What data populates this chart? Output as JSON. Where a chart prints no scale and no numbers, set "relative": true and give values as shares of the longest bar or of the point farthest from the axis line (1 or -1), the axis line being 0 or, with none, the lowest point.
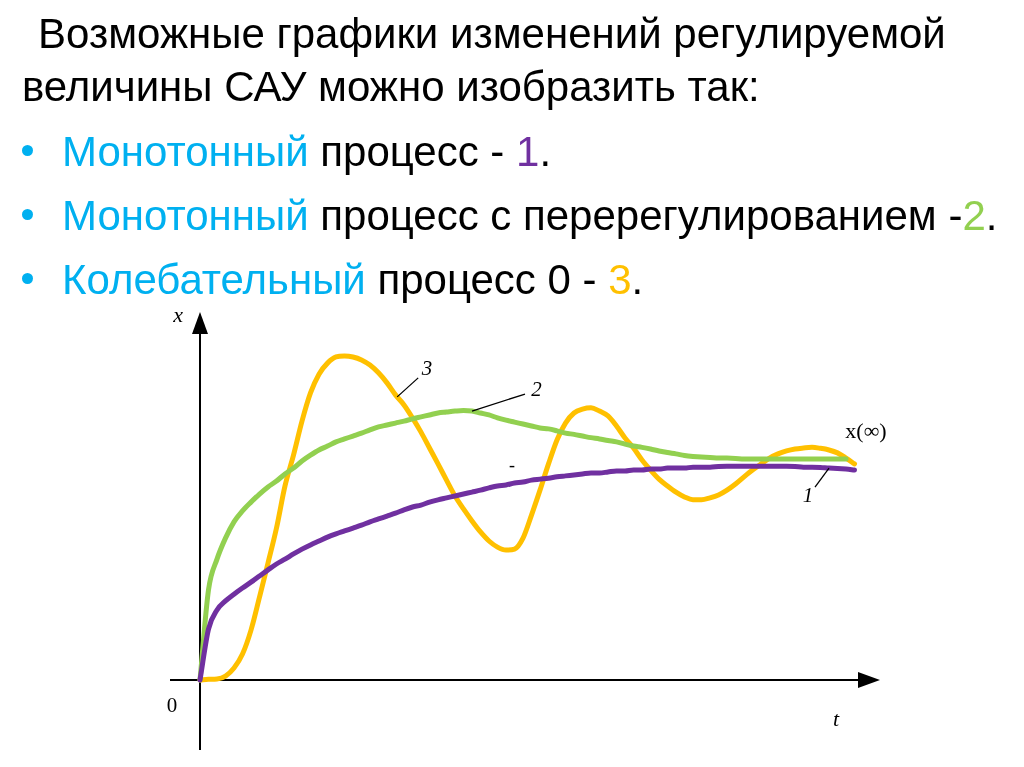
{
  "chart_data": {
    "type": "line",
    "title": "Возможные графики изменений регулируемой величины САУ можно изобразить так:",
    "subtitle": "Монотонный процесс - 1.\nМонотонный процесс с перерегулированием -2.\nКолебательный процесс 0 - 3.",
    "xlabel": "t",
    "ylabel": "x",
    "relative": true,
    "tick_labels": false,
    "marker": "none",
    "line_style": "solid",
    "categories": [
      null,
      null,
      null,
      null,
      null,
      null,
      null,
      null,
      null,
      null,
      null,
      null,
      null,
      null,
      null,
      null,
      null,
      null,
      null,
      null,
      null,
      null,
      null,
      null,
      null,
      null,
      null,
      null,
      null,
      null,
      null,
      null,
      null,
      null,
      null,
      null,
      null,
      null,
      null,
      null,
      null,
      null,
      null,
      null,
      null,
      null,
      null,
      null,
      null,
      null,
      null,
      null,
      null,
      null,
      null,
      null,
      null,
      null,
      null,
      null,
      null,
      null,
      null,
      null,
      null,
      null,
      null,
      null,
      null,
      null,
      null,
      null,
      null,
      null,
      null,
      null,
      null,
      null,
      null,
      null,
      null
    ],
    "series": [
      {
        "name": "1",
        "color": "#7030a0",
        "values": [
          0,
          0.157,
          0.216,
          0.244,
          0.265,
          0.284,
          0.302,
          0.321,
          0.34,
          0.358,
          0.373,
          0.389,
          0.404,
          0.417,
          0.429,
          0.441,
          0.451,
          0.46,
          0.469,
          0.478,
          0.488,
          0.497,
          0.506,
          0.515,
          0.525,
          0.534,
          0.54,
          0.549,
          0.556,
          0.562,
          0.568,
          0.574,
          0.58,
          0.586,
          0.593,
          0.599,
          0.602,
          0.608,
          0.611,
          0.617,
          0.62,
          0.623,
          0.627,
          0.63,
          0.633,
          0.636,
          0.639,
          0.639,
          0.642,
          0.645,
          0.645,
          0.648,
          0.648,
          0.651,
          0.651,
          0.654,
          0.654,
          0.654,
          0.657,
          0.657,
          0.657,
          0.659,
          0.66,
          0.66,
          0.66,
          0.66,
          0.66,
          0.66,
          0.66,
          0.66,
          0.659,
          0.657,
          0.657,
          0.656,
          0.654,
          0.653,
          0.651,
          0.648,
          null,
          null,
          null
        ]
      },
      {
        "name": "2",
        "color": "#92d050",
        "values": [
          0,
          0.278,
          0.373,
          0.438,
          0.488,
          0.522,
          0.549,
          0.574,
          0.596,
          0.614,
          0.636,
          0.654,
          0.676,
          0.694,
          0.71,
          0.722,
          0.735,
          0.744,
          0.753,
          0.762,
          0.772,
          0.781,
          0.787,
          0.793,
          0.799,
          0.806,
          0.812,
          0.818,
          0.824,
          0.827,
          0.83,
          0.832,
          0.83,
          0.824,
          0.818,
          0.809,
          0.802,
          0.796,
          0.79,
          0.784,
          0.778,
          0.775,
          0.769,
          0.762,
          0.758,
          0.753,
          0.748,
          0.744,
          0.739,
          0.735,
          0.728,
          0.722,
          0.718,
          0.713,
          0.707,
          0.702,
          0.698,
          0.693,
          0.69,
          0.688,
          0.687,
          0.685,
          0.685,
          0.684,
          0.682,
          0.682,
          0.682,
          0.682,
          0.682,
          0.682,
          0.682,
          0.682,
          0.682,
          0.682,
          0.682,
          0.682,
          0.682,
          null,
          null,
          null,
          null
        ]
      },
      {
        "name": "3",
        "color": "#ffc000",
        "values": [
          0,
          0.002,
          0.003,
          0.012,
          0.037,
          0.08,
          0.154,
          0.256,
          0.361,
          0.469,
          0.599,
          0.694,
          0.799,
          0.886,
          0.944,
          0.978,
          0.997,
          1,
          0.997,
          0.988,
          0.972,
          0.948,
          0.917,
          0.88,
          0.849,
          0.809,
          0.765,
          0.716,
          0.667,
          0.617,
          0.568,
          0.528,
          0.491,
          0.457,
          0.429,
          0.41,
          0.401,
          0.404,
          0.438,
          0.509,
          0.586,
          0.667,
          0.741,
          0.793,
          0.824,
          0.836,
          0.84,
          0.83,
          0.815,
          0.784,
          0.747,
          0.716,
          0.679,
          0.648,
          0.62,
          0.599,
          0.58,
          0.565,
          0.556,
          0.556,
          0.562,
          0.571,
          0.586,
          0.605,
          0.627,
          0.648,
          0.667,
          0.685,
          0.698,
          0.707,
          0.713,
          0.716,
          0.718,
          0.715,
          0.71,
          0.701,
          0.685,
          0.667,
          null,
          null,
          null
        ]
      }
    ],
    "annotations": [
      "x(∞)",
      "-",
      "0"
    ]
  }
}
